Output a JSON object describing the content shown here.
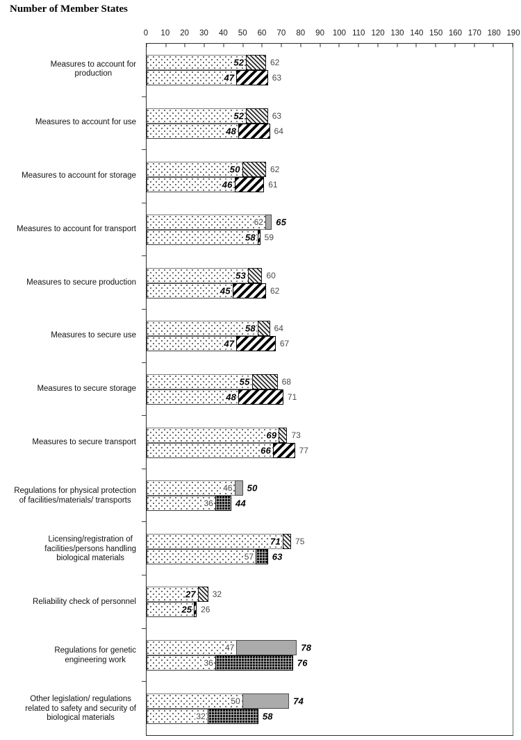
{
  "title": "Number of Member States",
  "chart_data": {
    "type": "bar",
    "orientation": "horizontal",
    "stacked": true,
    "title": "Number of Member States",
    "grid": false,
    "legend": "none",
    "axis": {
      "min": 0,
      "max": 190,
      "step": 10,
      "ticks": [
        0,
        10,
        20,
        30,
        40,
        50,
        60,
        70,
        80,
        90,
        100,
        110,
        120,
        130,
        140,
        150,
        160,
        170,
        180,
        190
      ]
    },
    "pattern_key": {
      "dots": "white bar with fine dot fill (base value)",
      "diag-thin": "thin backslash diagonal hatch extension",
      "diag-bold": "bold forward diagonal hatch extension",
      "solid-gray": "solid gray extension",
      "crosshatch": "dark crosshatch grid extension"
    },
    "colors": {
      "dot_fill": "#3c3c3c",
      "solid_gray": "#ababab",
      "hatch": "#000000",
      "crosshatch_bg": "#141414",
      "axis_line": "#2b2b2b"
    },
    "rows": [
      {
        "label": "Measures to account for production",
        "label_lines": [
          "Measures to account for",
          "production"
        ],
        "bars": [
          {
            "base": 52,
            "total": 62,
            "pattern": "diag-thin",
            "base_style": "bold",
            "total_style": "plain"
          },
          {
            "base": 47,
            "total": 63,
            "pattern": "diag-bold",
            "base_style": "bold",
            "total_style": "plain"
          }
        ]
      },
      {
        "label": "Measures to account for use",
        "label_lines": [
          "Measures to account for use"
        ],
        "bars": [
          {
            "base": 52,
            "total": 63,
            "pattern": "diag-thin",
            "base_style": "bold",
            "total_style": "plain"
          },
          {
            "base": 48,
            "total": 64,
            "pattern": "diag-bold",
            "base_style": "bold",
            "total_style": "plain"
          }
        ]
      },
      {
        "label": "Measures to account for storage",
        "label_lines": [
          "Measures to account for storage"
        ],
        "bars": [
          {
            "base": 50,
            "total": 62,
            "pattern": "diag-thin",
            "base_style": "bold",
            "total_style": "plain"
          },
          {
            "base": 46,
            "total": 61,
            "pattern": "diag-bold",
            "base_style": "bold",
            "total_style": "plain"
          }
        ]
      },
      {
        "label": "Measures to account for transport",
        "label_lines": [
          "Measures to account for transport"
        ],
        "bars": [
          {
            "base": 62,
            "total": 65,
            "pattern": "solid-gray",
            "base_style": "plain",
            "total_style": "bold"
          },
          {
            "base": 58,
            "total": 59,
            "pattern": "diag-bold",
            "base_style": "bold",
            "total_style": "plain"
          }
        ]
      },
      {
        "label": "Measures to secure production",
        "label_lines": [
          "Measures to secure production"
        ],
        "bars": [
          {
            "base": 53,
            "total": 60,
            "pattern": "diag-thin",
            "base_style": "bold",
            "total_style": "plain"
          },
          {
            "base": 45,
            "total": 62,
            "pattern": "diag-bold",
            "base_style": "bold",
            "total_style": "plain"
          }
        ]
      },
      {
        "label": "Measures to secure use",
        "label_lines": [
          "Measures to secure use"
        ],
        "bars": [
          {
            "base": 58,
            "total": 64,
            "pattern": "diag-thin",
            "base_style": "bold",
            "total_style": "plain"
          },
          {
            "base": 47,
            "total": 67,
            "pattern": "diag-bold",
            "base_style": "bold",
            "total_style": "plain"
          }
        ]
      },
      {
        "label": "Measures to secure storage",
        "label_lines": [
          "Measures to secure storage"
        ],
        "bars": [
          {
            "base": 55,
            "total": 68,
            "pattern": "diag-thin",
            "base_style": "bold",
            "total_style": "plain"
          },
          {
            "base": 48,
            "total": 71,
            "pattern": "diag-bold",
            "base_style": "bold",
            "total_style": "plain"
          }
        ]
      },
      {
        "label": "Measures to secure transport",
        "label_lines": [
          "Measures to secure transport"
        ],
        "bars": [
          {
            "base": 69,
            "total": 73,
            "pattern": "diag-thin",
            "base_style": "bold",
            "total_style": "plain"
          },
          {
            "base": 66,
            "total": 77,
            "pattern": "diag-bold",
            "base_style": "bold",
            "total_style": "plain"
          }
        ]
      },
      {
        "label": "Regulations for physical protection of facilities/materials/ transports",
        "label_lines": [
          "Regulations for physical protection",
          "of facilities/materials/ transports"
        ],
        "bars": [
          {
            "base": 46,
            "total": 50,
            "pattern": "solid-gray",
            "base_style": "plain",
            "total_style": "bold"
          },
          {
            "base": 36,
            "total": 44,
            "pattern": "crosshatch",
            "base_style": "plain",
            "total_style": "bold"
          }
        ]
      },
      {
        "label": "Licensing/registration of facilities/persons handling biological materials",
        "label_lines": [
          "Licensing/registration of",
          "facilities/persons handling",
          "biological materials"
        ],
        "bars": [
          {
            "base": 71,
            "total": 75,
            "pattern": "diag-thin",
            "base_style": "bold",
            "total_style": "plain"
          },
          {
            "base": 57,
            "total": 63,
            "pattern": "crosshatch",
            "base_style": "plain",
            "total_style": "bold"
          }
        ]
      },
      {
        "label": "Reliability check of personnel",
        "label_lines": [
          "Reliability check of personnel"
        ],
        "bars": [
          {
            "base": 27,
            "total": 32,
            "pattern": "diag-thin",
            "base_style": "bold",
            "total_style": "plain"
          },
          {
            "base": 25,
            "total": 26,
            "pattern": "diag-bold",
            "base_style": "bold",
            "total_style": "plain"
          }
        ]
      },
      {
        "label": "Regulations for genetic engineering work",
        "label_lines": [
          "Regulations for genetic",
          "engineering work"
        ],
        "bars": [
          {
            "base": 47,
            "total": 78,
            "pattern": "solid-gray",
            "base_style": "plain",
            "total_style": "bold"
          },
          {
            "base": 36,
            "total": 76,
            "pattern": "crosshatch",
            "base_style": "plain",
            "total_style": "bold"
          }
        ]
      },
      {
        "label": "Other legislation/ regulations related to safety and security of biological materials",
        "label_lines": [
          "Other legislation/ regulations",
          "related to safety and security of",
          "biological materials"
        ],
        "bars": [
          {
            "base": 50,
            "total": 74,
            "pattern": "solid-gray",
            "base_style": "plain",
            "total_style": "bold"
          },
          {
            "base": 32,
            "total": 58,
            "pattern": "crosshatch",
            "base_style": "plain",
            "total_style": "bold"
          }
        ]
      }
    ]
  }
}
